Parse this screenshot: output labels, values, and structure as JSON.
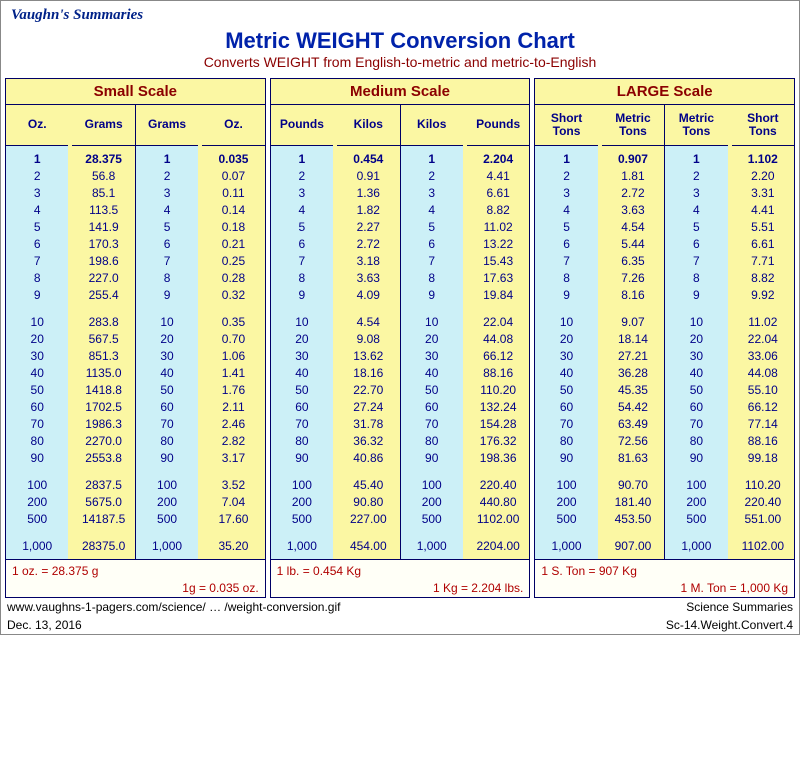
{
  "site_title": "Vaughn's Summaries",
  "chart_title": "Metric WEIGHT Conversion Chart",
  "chart_subtitle": "Converts WEIGHT from English-to-metric and metric-to-English",
  "index_rows": [
    "1",
    "2",
    "3",
    "4",
    "5",
    "6",
    "7",
    "8",
    "9",
    "",
    "10",
    "20",
    "30",
    "40",
    "50",
    "60",
    "70",
    "80",
    "90",
    "",
    "100",
    "200",
    "500",
    "",
    "1,000"
  ],
  "scales": [
    {
      "title": "Small Scale",
      "pairs": [
        {
          "from": "Oz.",
          "to": "Grams",
          "vals": [
            "28.375",
            "56.8",
            "85.1",
            "113.5",
            "141.9",
            "170.3",
            "198.6",
            "227.0",
            "255.4",
            "",
            "283.8",
            "567.5",
            "851.3",
            "1135.0",
            "1418.8",
            "1702.5",
            "1986.3",
            "2270.0",
            "2553.8",
            "",
            "2837.5",
            "5675.0",
            "14187.5",
            "",
            "28375.0"
          ]
        },
        {
          "from": "Grams",
          "to": "Oz.",
          "vals": [
            "0.035",
            "0.07",
            "0.11",
            "0.14",
            "0.18",
            "0.21",
            "0.25",
            "0.28",
            "0.32",
            "",
            "0.35",
            "0.70",
            "1.06",
            "1.41",
            "1.76",
            "2.11",
            "2.46",
            "2.82",
            "3.17",
            "",
            "3.52",
            "7.04",
            "17.60",
            "",
            "35.20"
          ]
        }
      ],
      "fn1": "1 oz. = 28.375 g",
      "fn2": "1g = 0.035 oz."
    },
    {
      "title": "Medium Scale",
      "pairs": [
        {
          "from": "Pounds",
          "to": "Kilos",
          "vals": [
            "0.454",
            "0.91",
            "1.36",
            "1.82",
            "2.27",
            "2.72",
            "3.18",
            "3.63",
            "4.09",
            "",
            "4.54",
            "9.08",
            "13.62",
            "18.16",
            "22.70",
            "27.24",
            "31.78",
            "36.32",
            "40.86",
            "",
            "45.40",
            "90.80",
            "227.00",
            "",
            "454.00"
          ]
        },
        {
          "from": "Kilos",
          "to": "Pounds",
          "vals": [
            "2.204",
            "4.41",
            "6.61",
            "8.82",
            "11.02",
            "13.22",
            "15.43",
            "17.63",
            "19.84",
            "",
            "22.04",
            "44.08",
            "66.12",
            "88.16",
            "110.20",
            "132.24",
            "154.28",
            "176.32",
            "198.36",
            "",
            "220.40",
            "440.80",
            "1102.00",
            "",
            "2204.00"
          ]
        }
      ],
      "fn1": "1 lb. = 0.454 Kg",
      "fn2": "1 Kg = 2.204 lbs."
    },
    {
      "title": "LARGE Scale",
      "pairs": [
        {
          "from": "Short\nTons",
          "to": "Metric\nTons",
          "vals": [
            "0.907",
            "1.81",
            "2.72",
            "3.63",
            "4.54",
            "5.44",
            "6.35",
            "7.26",
            "8.16",
            "",
            "9.07",
            "18.14",
            "27.21",
            "36.28",
            "45.35",
            "54.42",
            "63.49",
            "72.56",
            "81.63",
            "",
            "90.70",
            "181.40",
            "453.50",
            "",
            "907.00"
          ]
        },
        {
          "from": "Metric\nTons",
          "to": "Short\nTons",
          "vals": [
            "1.102",
            "2.20",
            "3.31",
            "4.41",
            "5.51",
            "6.61",
            "7.71",
            "8.82",
            "9.92",
            "",
            "11.02",
            "22.04",
            "33.06",
            "44.08",
            "55.10",
            "66.12",
            "77.14",
            "88.16",
            "99.18",
            "",
            "110.20",
            "220.40",
            "551.00",
            "",
            "1102.00"
          ]
        }
      ],
      "fn1": "1 S. Ton = 907 Kg",
      "fn2": "1 M. Ton = 1,000 Kg"
    }
  ],
  "bottom_left_1": "www.vaughns-1-pagers.com/science/ … /weight-conversion.gif",
  "bottom_left_2": "Dec. 13, 2016",
  "bottom_right_1": "Science Summaries",
  "bottom_right_2": "Sc-14.Weight.Convert.4"
}
